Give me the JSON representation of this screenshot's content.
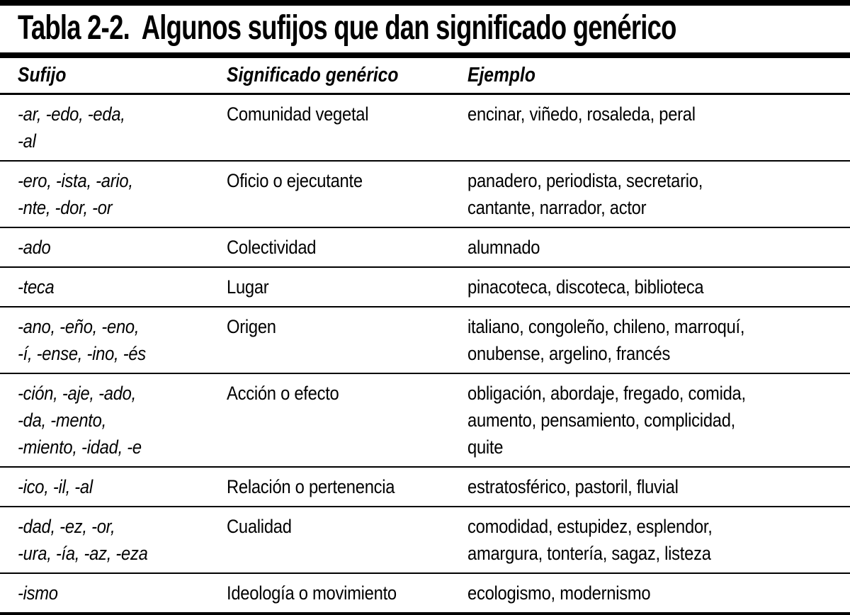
{
  "page": {
    "background": "#ffffff",
    "text_color": "#000000",
    "rule_color": "#000000"
  },
  "table": {
    "title_label": "Tabla 2-2.",
    "title_text": "Algunos sufijos que dan significado genérico",
    "columns": [
      "Sufijo",
      "Significado genérico",
      "Ejemplo"
    ],
    "rows": [
      {
        "sufijo": [
          "-ar, -edo, -eda,",
          "-al"
        ],
        "significado": [
          "Comunidad vegetal"
        ],
        "ejemplo": [
          "encinar, viñedo, rosaleda, peral"
        ]
      },
      {
        "sufijo": [
          "-ero, -ista, -ario,",
          "-nte, -dor, -or"
        ],
        "significado": [
          "Oficio o ejecutante"
        ],
        "ejemplo": [
          "panadero, periodista, secretario,",
          "cantante, narrador, actor"
        ]
      },
      {
        "sufijo": [
          "-ado"
        ],
        "significado": [
          "Colectividad"
        ],
        "ejemplo": [
          "alumnado"
        ]
      },
      {
        "sufijo": [
          "-teca"
        ],
        "significado": [
          "Lugar"
        ],
        "ejemplo": [
          "pinacoteca, discoteca, biblioteca"
        ]
      },
      {
        "sufijo": [
          "-ano, -eño, -eno,",
          "-í, -ense, -ino, -és"
        ],
        "significado": [
          "Origen"
        ],
        "ejemplo": [
          "italiano, congoleño, chileno, marroquí,",
          "onubense, argelino, francés"
        ]
      },
      {
        "sufijo": [
          "-ción, -aje, -ado,",
          "-da, -mento,",
          "-miento, -idad, -e"
        ],
        "significado": [
          "Acción o efecto"
        ],
        "ejemplo": [
          "obligación, abordaje, fregado, comida,",
          "aumento, pensamiento, complicidad,",
          "quite"
        ]
      },
      {
        "sufijo": [
          "-ico, -il, -al"
        ],
        "significado": [
          "Relación o pertenencia"
        ],
        "ejemplo": [
          "estratosférico, pastoril, fluvial"
        ]
      },
      {
        "sufijo": [
          "-dad, -ez, -or,",
          "-ura, -ía, -az, -eza"
        ],
        "significado": [
          "Cualidad"
        ],
        "ejemplo": [
          "comodidad, estupidez, esplendor,",
          "amargura, tontería, sagaz, listeza"
        ]
      },
      {
        "sufijo": [
          "-ismo"
        ],
        "significado": [
          "Ideología o movimiento"
        ],
        "ejemplo": [
          "ecologismo, modernismo"
        ]
      }
    ]
  }
}
